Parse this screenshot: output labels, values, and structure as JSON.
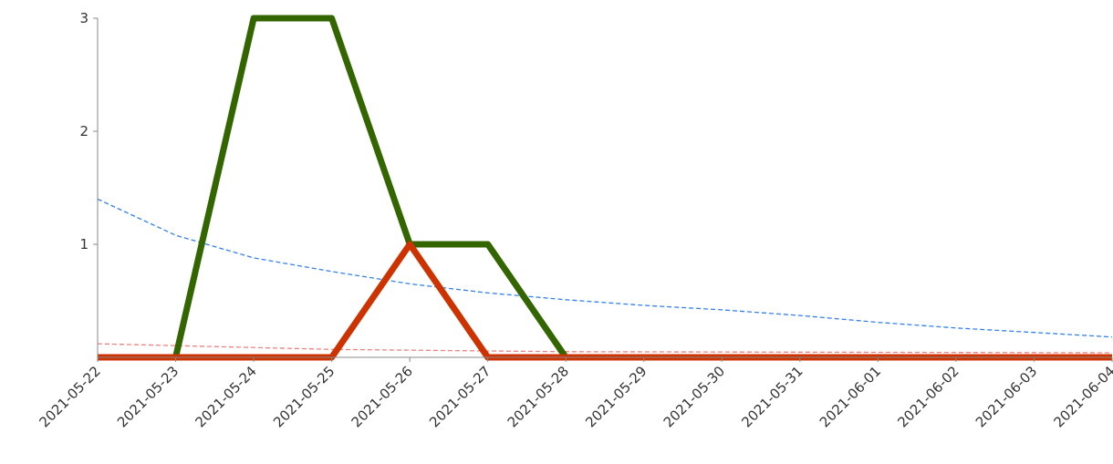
{
  "chart_data": {
    "type": "line",
    "title": "",
    "xlabel": "",
    "ylabel": "",
    "x": [
      "2021-05-22",
      "2021-05-23",
      "2021-05-24",
      "2021-05-25",
      "2021-05-26",
      "2021-05-27",
      "2021-05-28",
      "2021-05-29",
      "2021-05-30",
      "2021-05-31",
      "2021-06-01",
      "2021-06-02",
      "2021-06-03",
      "2021-06-04"
    ],
    "xlim": [
      "2021-05-22",
      "2021-06-04"
    ],
    "ylim": [
      0,
      3
    ],
    "y_ticks": [
      1,
      2,
      3
    ],
    "grid": false,
    "legend": "none",
    "series": [
      {
        "style": "solid-thick",
        "color": "#336600",
        "points": [
          [
            "2021-05-23",
            0
          ],
          [
            "2021-05-24",
            3
          ],
          [
            "2021-05-25",
            3
          ],
          [
            "2021-05-26",
            1
          ],
          [
            "2021-05-27",
            1
          ],
          [
            "2021-05-28",
            0
          ],
          [
            "2021-06-04",
            0
          ]
        ]
      },
      {
        "style": "solid-thick",
        "color": "#cc3300",
        "points": [
          [
            "2021-05-22",
            0
          ],
          [
            "2021-05-25",
            0
          ],
          [
            "2021-05-26",
            1
          ],
          [
            "2021-05-27",
            0
          ],
          [
            "2021-06-04",
            0
          ]
        ]
      },
      {
        "style": "dashed",
        "color": "#3380ee",
        "points": [
          [
            "2021-05-22",
            1.4
          ],
          [
            "2021-05-23",
            1.08
          ],
          [
            "2021-05-24",
            0.88
          ],
          [
            "2021-05-25",
            0.76
          ],
          [
            "2021-05-26",
            0.65
          ],
          [
            "2021-05-27",
            0.57
          ],
          [
            "2021-05-28",
            0.51
          ],
          [
            "2021-05-29",
            0.46
          ],
          [
            "2021-05-30",
            0.42
          ],
          [
            "2021-05-31",
            0.37
          ],
          [
            "2021-06-01",
            0.31
          ],
          [
            "2021-06-02",
            0.26
          ],
          [
            "2021-06-03",
            0.22
          ],
          [
            "2021-06-04",
            0.18
          ]
        ]
      },
      {
        "style": "dashed",
        "color": "#f08080",
        "points": [
          [
            "2021-05-22",
            0.12
          ],
          [
            "2021-05-25",
            0.07
          ],
          [
            "2021-05-28",
            0.05
          ],
          [
            "2021-06-04",
            0.04
          ]
        ]
      }
    ]
  }
}
